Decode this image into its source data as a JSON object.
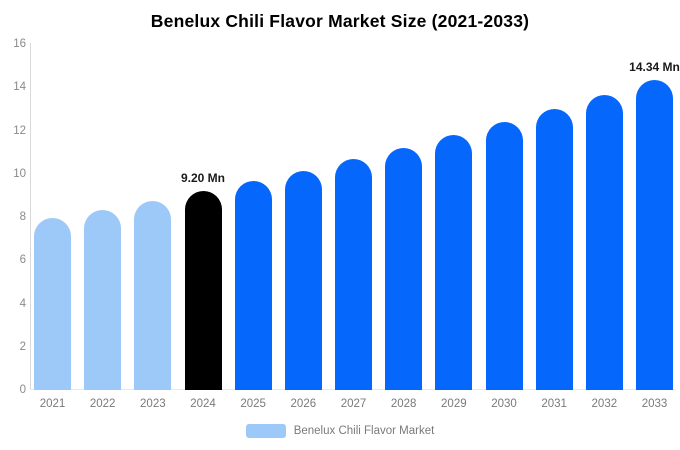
{
  "title": "Benelux Chili Flavor Market Size (2021-2033)",
  "legend": {
    "label": "Benelux Chili Flavor Market",
    "swatch_color": "#9dc9f8"
  },
  "chart_data": {
    "type": "bar",
    "title": "Benelux Chili Flavor Market Size (2021-2033)",
    "categories": [
      "2021",
      "2022",
      "2023",
      "2024",
      "2025",
      "2026",
      "2027",
      "2028",
      "2029",
      "2030",
      "2031",
      "2032",
      "2033"
    ],
    "values": [
      7.94,
      8.34,
      8.76,
      9.2,
      9.66,
      10.15,
      10.67,
      11.21,
      11.77,
      12.37,
      13.0,
      13.65,
      14.34
    ],
    "unit": "Mn",
    "xlabel": "",
    "ylabel": "",
    "ylim": [
      0,
      16
    ],
    "ytick_step": 2,
    "grid": false,
    "legend_position": "bottom",
    "bar_color_roles": [
      "historical",
      "historical",
      "historical",
      "base",
      "forecast",
      "forecast",
      "forecast",
      "forecast",
      "forecast",
      "forecast",
      "forecast",
      "forecast",
      "forecast"
    ],
    "colors": {
      "historical": "#9dc9f8",
      "base": "#000000",
      "forecast": "#0667fd"
    },
    "annotations": [
      {
        "category": "2024",
        "text": "9.20 Mn"
      },
      {
        "category": "2033",
        "text": "14.34 Mn"
      }
    ]
  },
  "axis_style": {
    "tick_color": "#8a8a8a",
    "label_color": "#7a7a7a",
    "line_color": "#d9d9d9"
  }
}
